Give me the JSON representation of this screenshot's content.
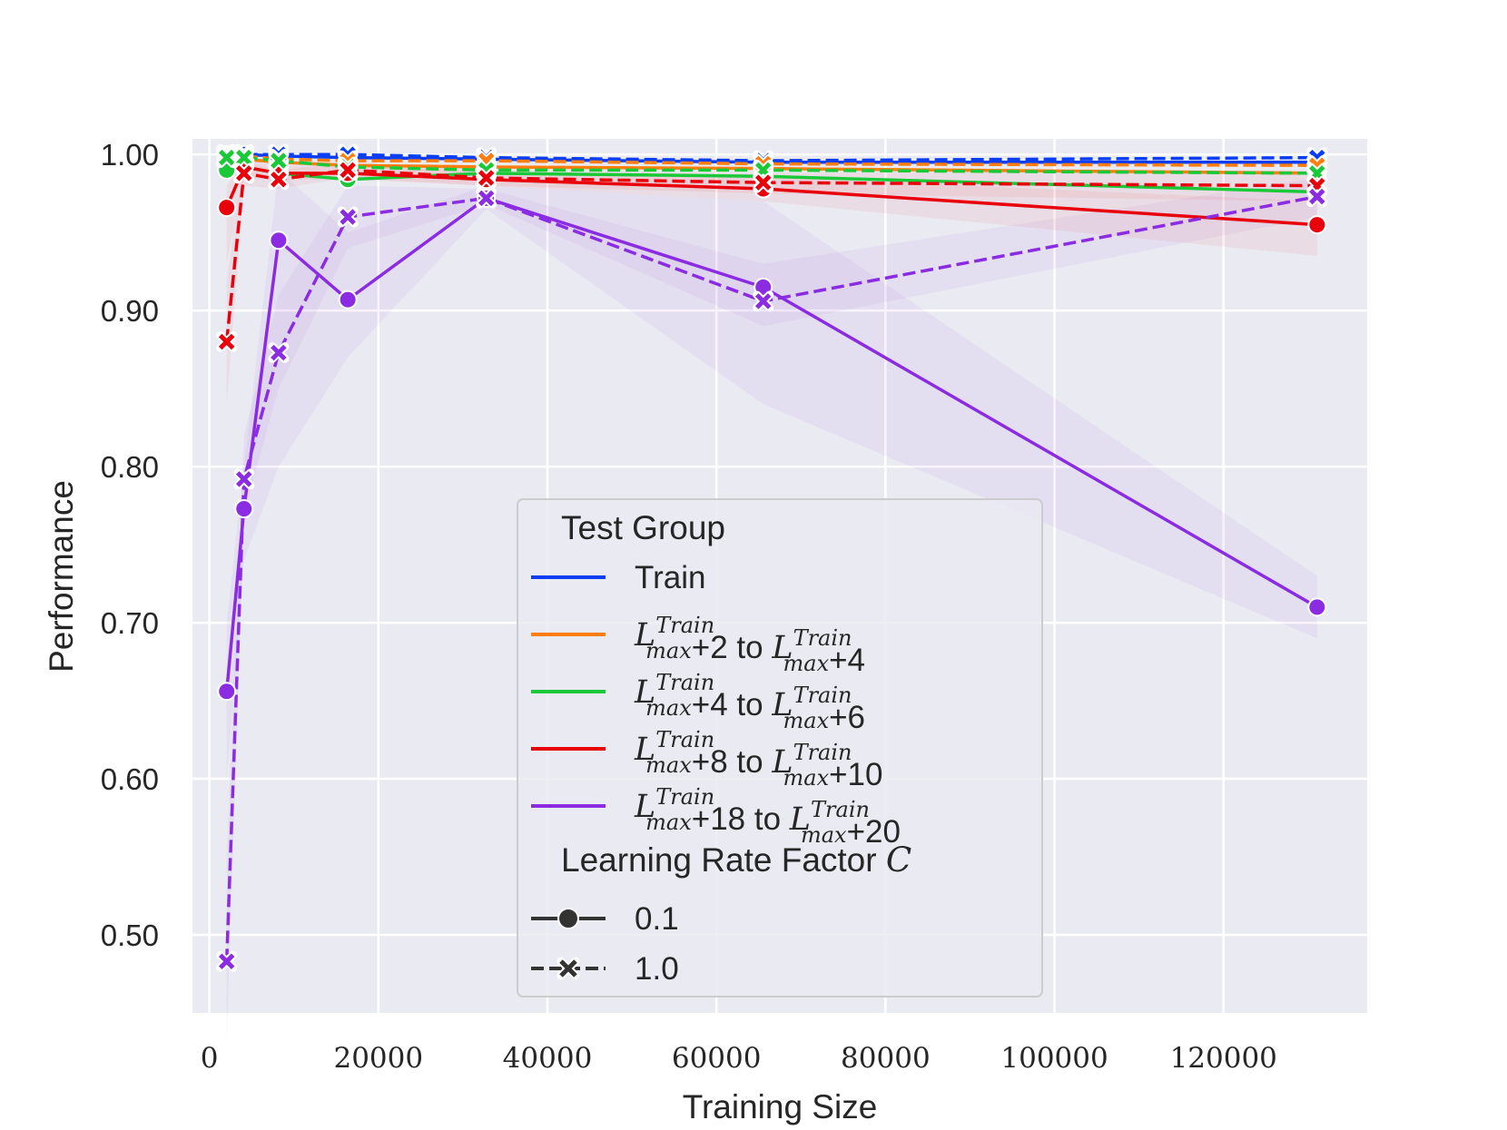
{
  "chart_data": {
    "type": "line",
    "xlabel": "Training Size",
    "ylabel": "Performance",
    "xlim": [
      -2000,
      137000
    ],
    "ylim": [
      0.45,
      1.01
    ],
    "xticks": [
      "0",
      "20000",
      "40000",
      "60000",
      "80000",
      "100000",
      "120000"
    ],
    "xtick_values": [
      0,
      20000,
      40000,
      60000,
      80000,
      100000,
      120000
    ],
    "yticks": [
      "0.50",
      "0.60",
      "0.70",
      "0.80",
      "0.90",
      "1.00"
    ],
    "ytick_values": [
      0.5,
      0.6,
      0.7,
      0.8,
      0.9,
      1.0
    ],
    "grid": true,
    "legend_position": "bottom-center",
    "legend": {
      "hue_title": "Test Group",
      "style_title_text": "Learning Rate Factor ",
      "style_title_math": "C",
      "groups": [
        {
          "key": "train",
          "color": "#0a3ef5",
          "label": "Train"
        },
        {
          "key": "g1",
          "color": "#ff7c0e",
          "label_math": "L",
          "label_sup": "Train",
          "label_sub": "max",
          "label_parts": [
            "+2 to ",
            "+4"
          ]
        },
        {
          "key": "g2",
          "color": "#1ac938",
          "label_math": "L",
          "label_sup": "Train",
          "label_sub": "max",
          "label_parts": [
            "+4 to ",
            "+6"
          ]
        },
        {
          "key": "g3",
          "color": "#e8000b",
          "label_math": "L",
          "label_sup": "Train",
          "label_sub": "max",
          "label_parts": [
            "+8 to ",
            "+10"
          ]
        },
        {
          "key": "g4",
          "color": "#8b2be2",
          "label_math": "L",
          "label_sup": "Train",
          "label_sub": "max",
          "label_parts": [
            "+18 to ",
            "+20"
          ]
        }
      ],
      "styles": [
        {
          "label": "0.1",
          "marker": "circle",
          "dash": "solid"
        },
        {
          "label": "1.0",
          "marker": "x",
          "dash": "dashed"
        }
      ]
    },
    "x": [
      2048,
      4096,
      8192,
      16384,
      32768,
      65536,
      131072
    ],
    "series": [
      {
        "group": "train",
        "color": "#0a3ef5",
        "lr": "0.1",
        "values": [
          1.0,
          1.0,
          0.999,
          0.998,
          0.997,
          0.995,
          0.995
        ]
      },
      {
        "group": "g1",
        "color": "#ff7c0e",
        "lr": "0.1",
        "values": [
          0.999,
          0.997,
          0.995,
          0.993,
          0.992,
          0.991,
          0.988
        ]
      },
      {
        "group": "g2",
        "color": "#1ac938",
        "lr": "0.1",
        "values": [
          0.99,
          0.992,
          0.988,
          0.984,
          0.988,
          0.986,
          0.976
        ]
      },
      {
        "group": "g3",
        "color": "#e8000b",
        "lr": "0.1",
        "values": [
          0.966,
          0.992,
          0.988,
          0.988,
          0.984,
          0.978,
          0.955
        ]
      },
      {
        "group": "g4",
        "color": "#8b2be2",
        "lr": "0.1",
        "values": [
          0.656,
          0.773,
          0.945,
          0.907,
          0.972,
          0.915,
          0.71
        ]
      },
      {
        "group": "train",
        "color": "#0a3ef5",
        "lr": "1.0",
        "values": [
          1.0,
          1.0,
          1.0,
          1.0,
          0.998,
          0.996,
          0.998
        ]
      },
      {
        "group": "g1",
        "color": "#ff7c0e",
        "lr": "1.0",
        "values": [
          0.999,
          0.999,
          0.997,
          0.996,
          0.996,
          0.994,
          0.993
        ]
      },
      {
        "group": "g2",
        "color": "#1ac938",
        "lr": "1.0",
        "values": [
          0.998,
          0.998,
          0.996,
          0.992,
          0.99,
          0.99,
          0.988
        ]
      },
      {
        "group": "g3",
        "color": "#e8000b",
        "lr": "1.0",
        "values": [
          0.88,
          0.988,
          0.984,
          0.99,
          0.985,
          0.982,
          0.98
        ]
      },
      {
        "group": "g4",
        "color": "#8b2be2",
        "lr": "1.0",
        "values": [
          0.483,
          0.792,
          0.873,
          0.96,
          0.972,
          0.906,
          0.973
        ]
      }
    ],
    "confidence_bands": [
      {
        "group": "g4",
        "lr": "0.1",
        "color": "#8b2be2",
        "lower": [
          0.6,
          0.74,
          0.8,
          0.87,
          0.965,
          0.84,
          0.69
        ],
        "upper": [
          0.7,
          0.8,
          0.99,
          0.95,
          0.98,
          0.97,
          0.73
        ]
      },
      {
        "group": "g4",
        "lr": "1.0",
        "color": "#8b2be2",
        "lower": [
          0.43,
          0.77,
          0.85,
          0.94,
          0.968,
          0.89,
          0.96
        ],
        "upper": [
          0.55,
          0.82,
          0.91,
          0.98,
          0.978,
          0.93,
          0.985
        ]
      },
      {
        "group": "g3",
        "lr": "0.1",
        "color": "#e8000b",
        "lower": [
          0.93,
          0.985,
          0.984,
          0.984,
          0.98,
          0.97,
          0.935
        ],
        "upper": [
          0.98,
          0.997,
          0.993,
          0.993,
          0.989,
          0.986,
          0.97
        ]
      },
      {
        "group": "g3",
        "lr": "1.0",
        "color": "#e8000b",
        "lower": [
          0.84,
          0.98,
          0.978,
          0.985,
          0.98,
          0.975,
          0.97
        ],
        "upper": [
          0.92,
          0.995,
          0.99,
          0.995,
          0.99,
          0.988,
          0.99
        ]
      }
    ]
  }
}
